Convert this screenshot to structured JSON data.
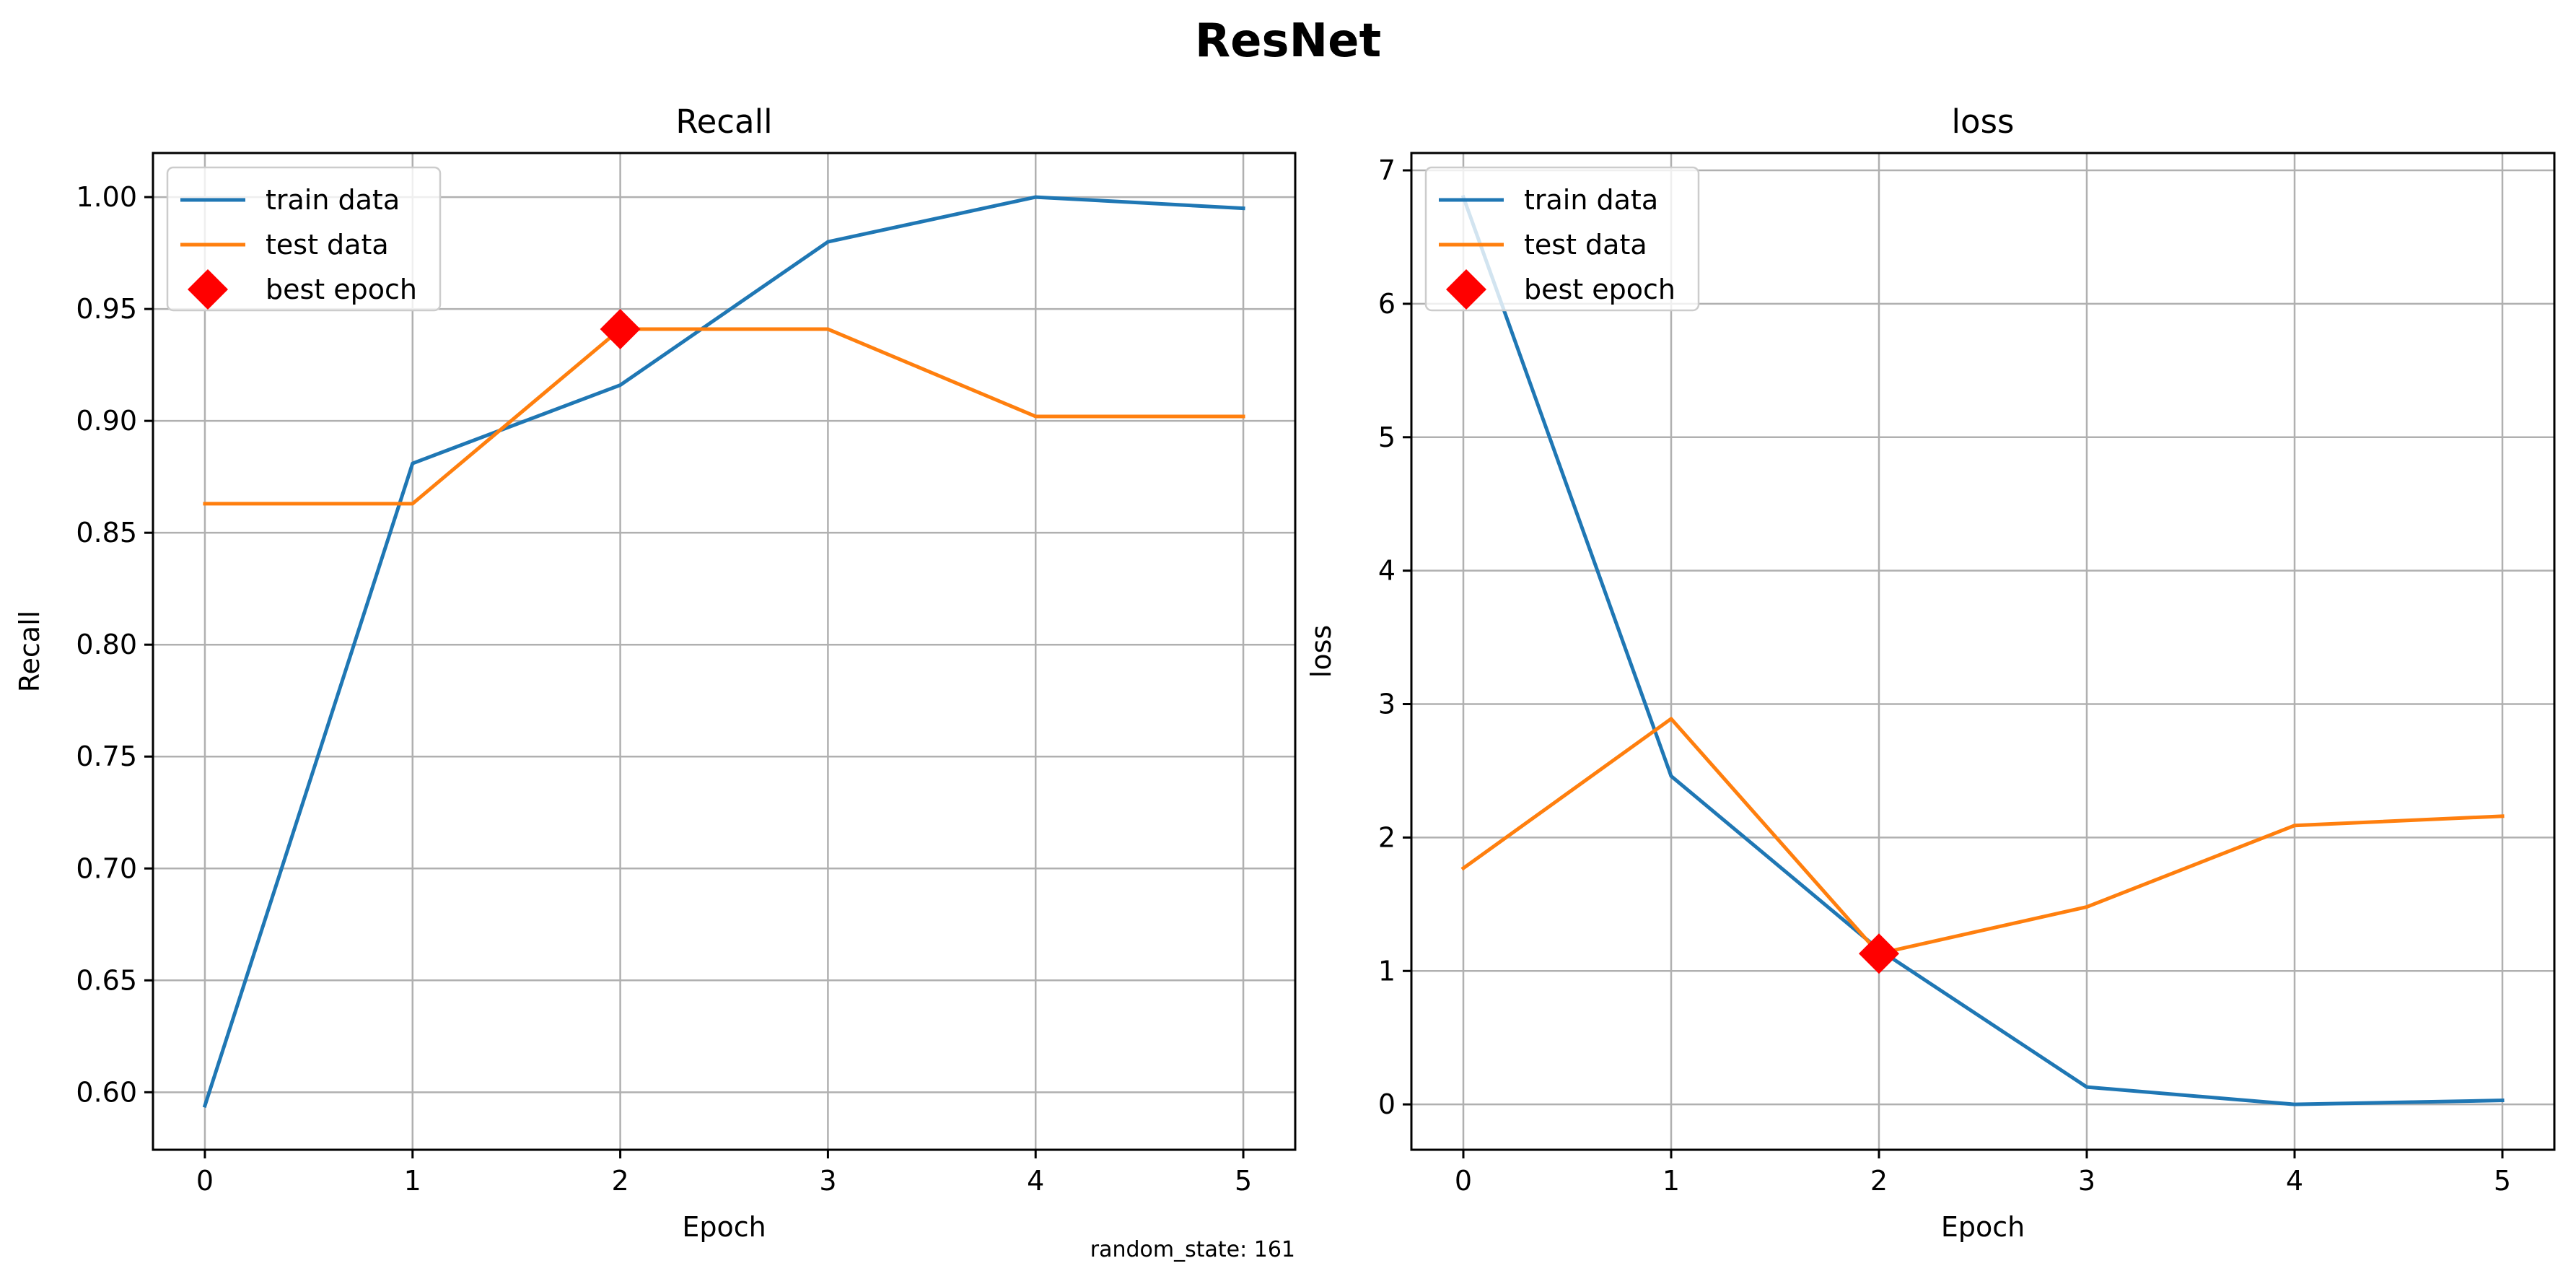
{
  "figure": {
    "suptitle": "ResNet",
    "annotation": "random_state: 161"
  },
  "colors": {
    "train": "#1f77b4",
    "test": "#ff7f0e",
    "best": "#ff0000",
    "grid": "#b0b0b0"
  },
  "chart_data": [
    {
      "type": "line",
      "title": "Recall",
      "xlabel": "Epoch",
      "ylabel": "Recall",
      "grid": true,
      "legend_position": "top-left",
      "xlim": [
        -0.25,
        5.25
      ],
      "ylim": [
        0.5743,
        1.0197
      ],
      "x_ticks": [
        0,
        1,
        2,
        3,
        4,
        5
      ],
      "y_ticks": [
        0.6,
        0.65,
        0.7,
        0.75,
        0.8,
        0.85,
        0.9,
        0.95,
        1.0
      ],
      "y_tick_labels": [
        "0.60",
        "0.65",
        "0.70",
        "0.75",
        "0.80",
        "0.85",
        "0.90",
        "0.95",
        "1.00"
      ],
      "series": [
        {
          "name": "train data",
          "color_key": "train",
          "x": [
            0,
            1,
            2,
            3,
            4,
            5
          ],
          "y": [
            0.594,
            0.881,
            0.916,
            0.98,
            1.0,
            0.995
          ]
        },
        {
          "name": "test data",
          "color_key": "test",
          "x": [
            0,
            1,
            2,
            3,
            4,
            5
          ],
          "y": [
            0.863,
            0.863,
            0.941,
            0.941,
            0.902,
            0.902
          ]
        }
      ],
      "best_epoch": {
        "name": "best epoch",
        "x": 2,
        "y": 0.941
      }
    },
    {
      "type": "line",
      "title": "loss",
      "xlabel": "Epoch",
      "ylabel": "loss",
      "grid": true,
      "legend_position": "top-left",
      "xlim": [
        -0.25,
        5.25
      ],
      "ylim": [
        -0.34,
        7.13
      ],
      "x_ticks": [
        0,
        1,
        2,
        3,
        4,
        5
      ],
      "y_ticks": [
        0,
        1,
        2,
        3,
        4,
        5,
        6,
        7
      ],
      "y_tick_labels": [
        "0",
        "1",
        "2",
        "3",
        "4",
        "5",
        "6",
        "7"
      ],
      "series": [
        {
          "name": "train data",
          "color_key": "train",
          "x": [
            0,
            1,
            2,
            3,
            4,
            5
          ],
          "y": [
            6.8,
            2.46,
            1.16,
            0.13,
            0.0,
            0.03
          ]
        },
        {
          "name": "test data",
          "color_key": "test",
          "x": [
            0,
            1,
            2,
            3,
            4,
            5
          ],
          "y": [
            1.77,
            2.89,
            1.13,
            1.48,
            2.09,
            2.16
          ]
        }
      ],
      "best_epoch": {
        "name": "best epoch",
        "x": 2,
        "y": 1.13
      }
    }
  ]
}
